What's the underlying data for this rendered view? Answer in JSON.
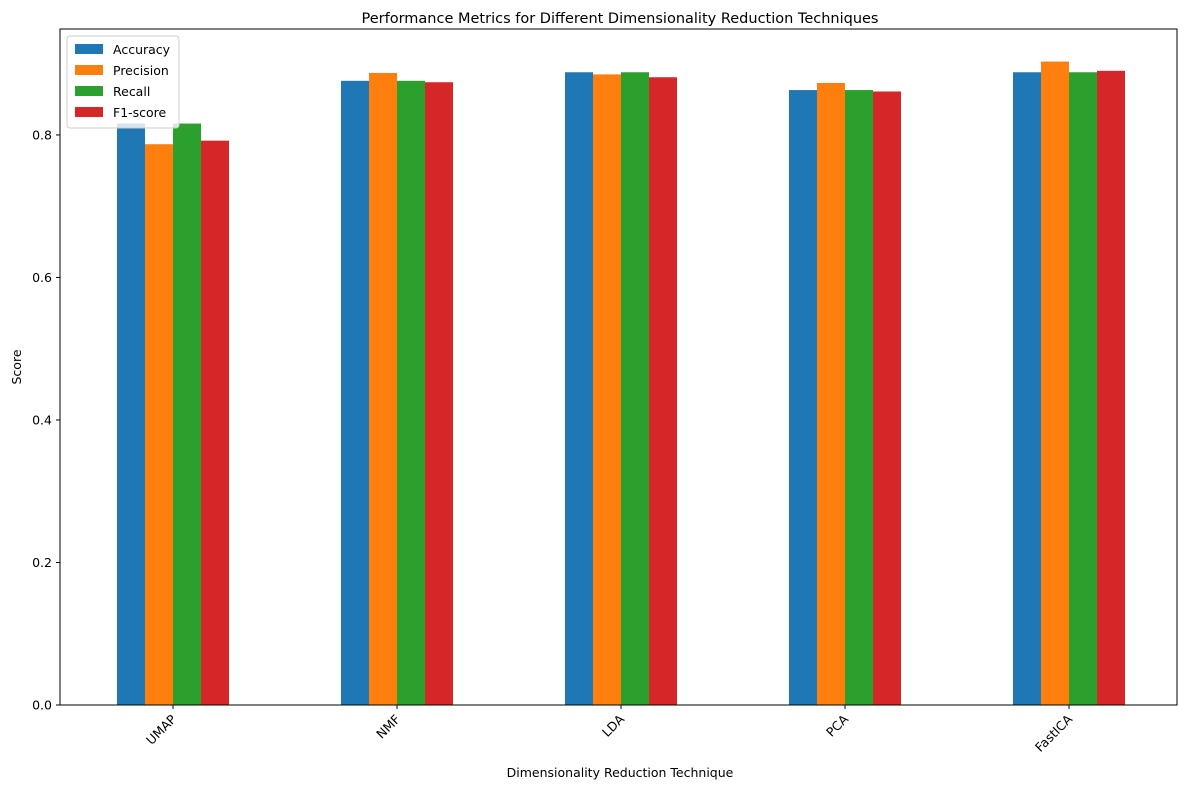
{
  "chart_data": {
    "type": "bar",
    "title": "Performance Metrics for Different Dimensionality Reduction Techniques",
    "xlabel": "Dimensionality Reduction Technique",
    "ylabel": "Score",
    "categories": [
      "UMAP",
      "NMF",
      "LDA",
      "PCA",
      "FastICA"
    ],
    "series": [
      {
        "name": "Accuracy",
        "color": "#1f77b4",
        "values": [
          0.816,
          0.876,
          0.888,
          0.863,
          0.888
        ]
      },
      {
        "name": "Precision",
        "color": "#ff7f0e",
        "values": [
          0.787,
          0.887,
          0.885,
          0.873,
          0.903
        ]
      },
      {
        "name": "Recall",
        "color": "#2ca02c",
        "values": [
          0.816,
          0.876,
          0.888,
          0.863,
          0.888
        ]
      },
      {
        "name": "F1-score",
        "color": "#d62728",
        "values": [
          0.792,
          0.874,
          0.881,
          0.861,
          0.89
        ]
      }
    ],
    "yticks": [
      "0.0",
      "0.2",
      "0.4",
      "0.6",
      "0.8"
    ],
    "ylim": [
      0,
      0.9487
    ],
    "legend_position": "top-left",
    "grid": false
  }
}
